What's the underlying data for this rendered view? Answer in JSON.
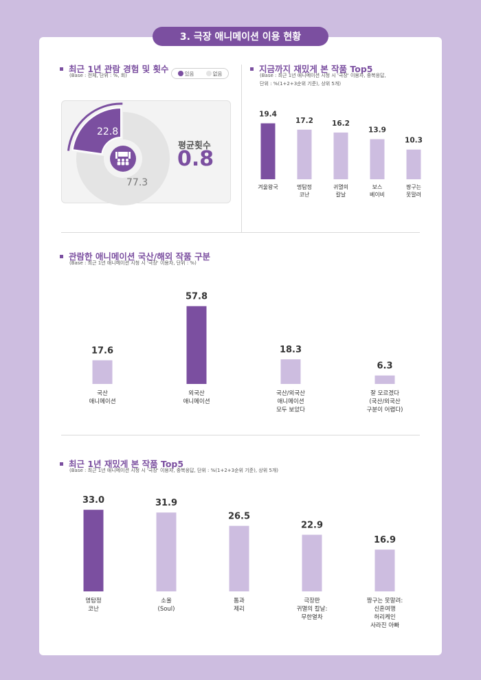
{
  "page_title": "3. 극장 애니메이션 이용 현황",
  "colors": {
    "primary": "#7b4fa0",
    "secondary": "#cdbde0",
    "empty": "#e4e4e4"
  },
  "icon": "theater-seat-icon",
  "sections": {
    "s1": {
      "title": "최근 1년 관람 경험 및 횟수",
      "sub": "(Base : 전체, 단위 : %, 회)"
    },
    "s2": {
      "title": "지금까지 재밌게 본 작품 Top5",
      "sub1": "(Base : 최근 1년 애니메이션 시청 시 '극장' 이용자, 중복응답,",
      "sub2": "단위 : %(1+2+3순위 기준), 상위 5개)"
    },
    "s3": {
      "title": "관람한 애니메이션 국산/해외 작품 구분",
      "sub": "(Base : 최근 1년 애니메이션 시청 시 '극장' 이용자, 단위 : %)"
    },
    "s4": {
      "title": "최근 1년 재밌게 본 작품 Top5",
      "sub": "(Base : 최근 1년 애니메이션 시청 시 '극장' 이용자, 중복응답, 단위 : %(1+2+3순위 기준), 상위 5개)"
    }
  },
  "legend": {
    "yes": "있음",
    "no": "없음"
  },
  "avg": {
    "label": "평균횟수",
    "value": "0.8"
  },
  "chart_data": [
    {
      "type": "pie",
      "categories": [
        "있음",
        "없음"
      ],
      "values": [
        22.8,
        77.3
      ],
      "labels": [
        "22.8",
        "77.3"
      ]
    },
    {
      "type": "bar",
      "categories": [
        [
          "겨울왕국"
        ],
        [
          "명탐정",
          "코난"
        ],
        [
          "귀멸의",
          "칼날"
        ],
        [
          "보스",
          "베이비"
        ],
        [
          "짱구는",
          "못말려"
        ]
      ],
      "values": [
        19.4,
        17.2,
        16.2,
        13.9,
        10.3
      ],
      "labels": [
        "19.4",
        "17.2",
        "16.2",
        "13.9",
        "10.3"
      ]
    },
    {
      "type": "bar",
      "categories": [
        [
          "국산",
          "애니메이션"
        ],
        [
          "외국산",
          "애니메이션"
        ],
        [
          "국산/외국산",
          "애니메이션",
          "모두 보았다"
        ],
        [
          "잘 모르겠다",
          "(국산/외국산",
          "구분이 어렵다)"
        ]
      ],
      "values": [
        17.6,
        57.8,
        18.3,
        6.3
      ],
      "labels": [
        "17.6",
        "57.8",
        "18.3",
        "6.3"
      ]
    },
    {
      "type": "bar",
      "categories": [
        [
          "명탐정",
          "코난"
        ],
        [
          "소울",
          "(Soul)"
        ],
        [
          "톰과",
          "제리"
        ],
        [
          "극장판",
          "귀멸의 칼날:",
          "무한열차"
        ],
        [
          "짱구는 못말려:",
          "신혼여행",
          "허리케인",
          "사라진 아빠"
        ]
      ],
      "values": [
        33.0,
        31.9,
        26.5,
        22.9,
        16.9
      ],
      "labels": [
        "33.0",
        "31.9",
        "26.5",
        "22.9",
        "16.9"
      ]
    }
  ]
}
